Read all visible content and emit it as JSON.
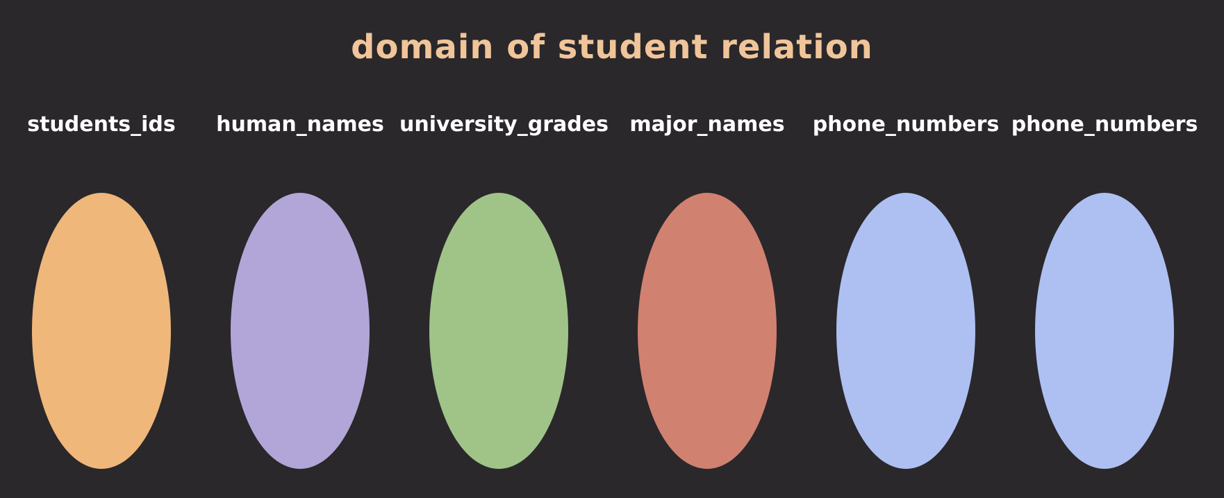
{
  "title": "domain of student relation",
  "title_color": "#f0c59a",
  "domains": [
    {
      "label": "students_ids",
      "color": "#f0b77a"
    },
    {
      "label": "human_names",
      "color": "#b2a6d8"
    },
    {
      "label": "university_grades",
      "color": "#a0c488"
    },
    {
      "label": "major_names",
      "color": "#d08170"
    },
    {
      "label": "phone_numbers",
      "color": "#aec0f2"
    },
    {
      "label": "phone_numbers",
      "color": "#aec0f2"
    }
  ]
}
